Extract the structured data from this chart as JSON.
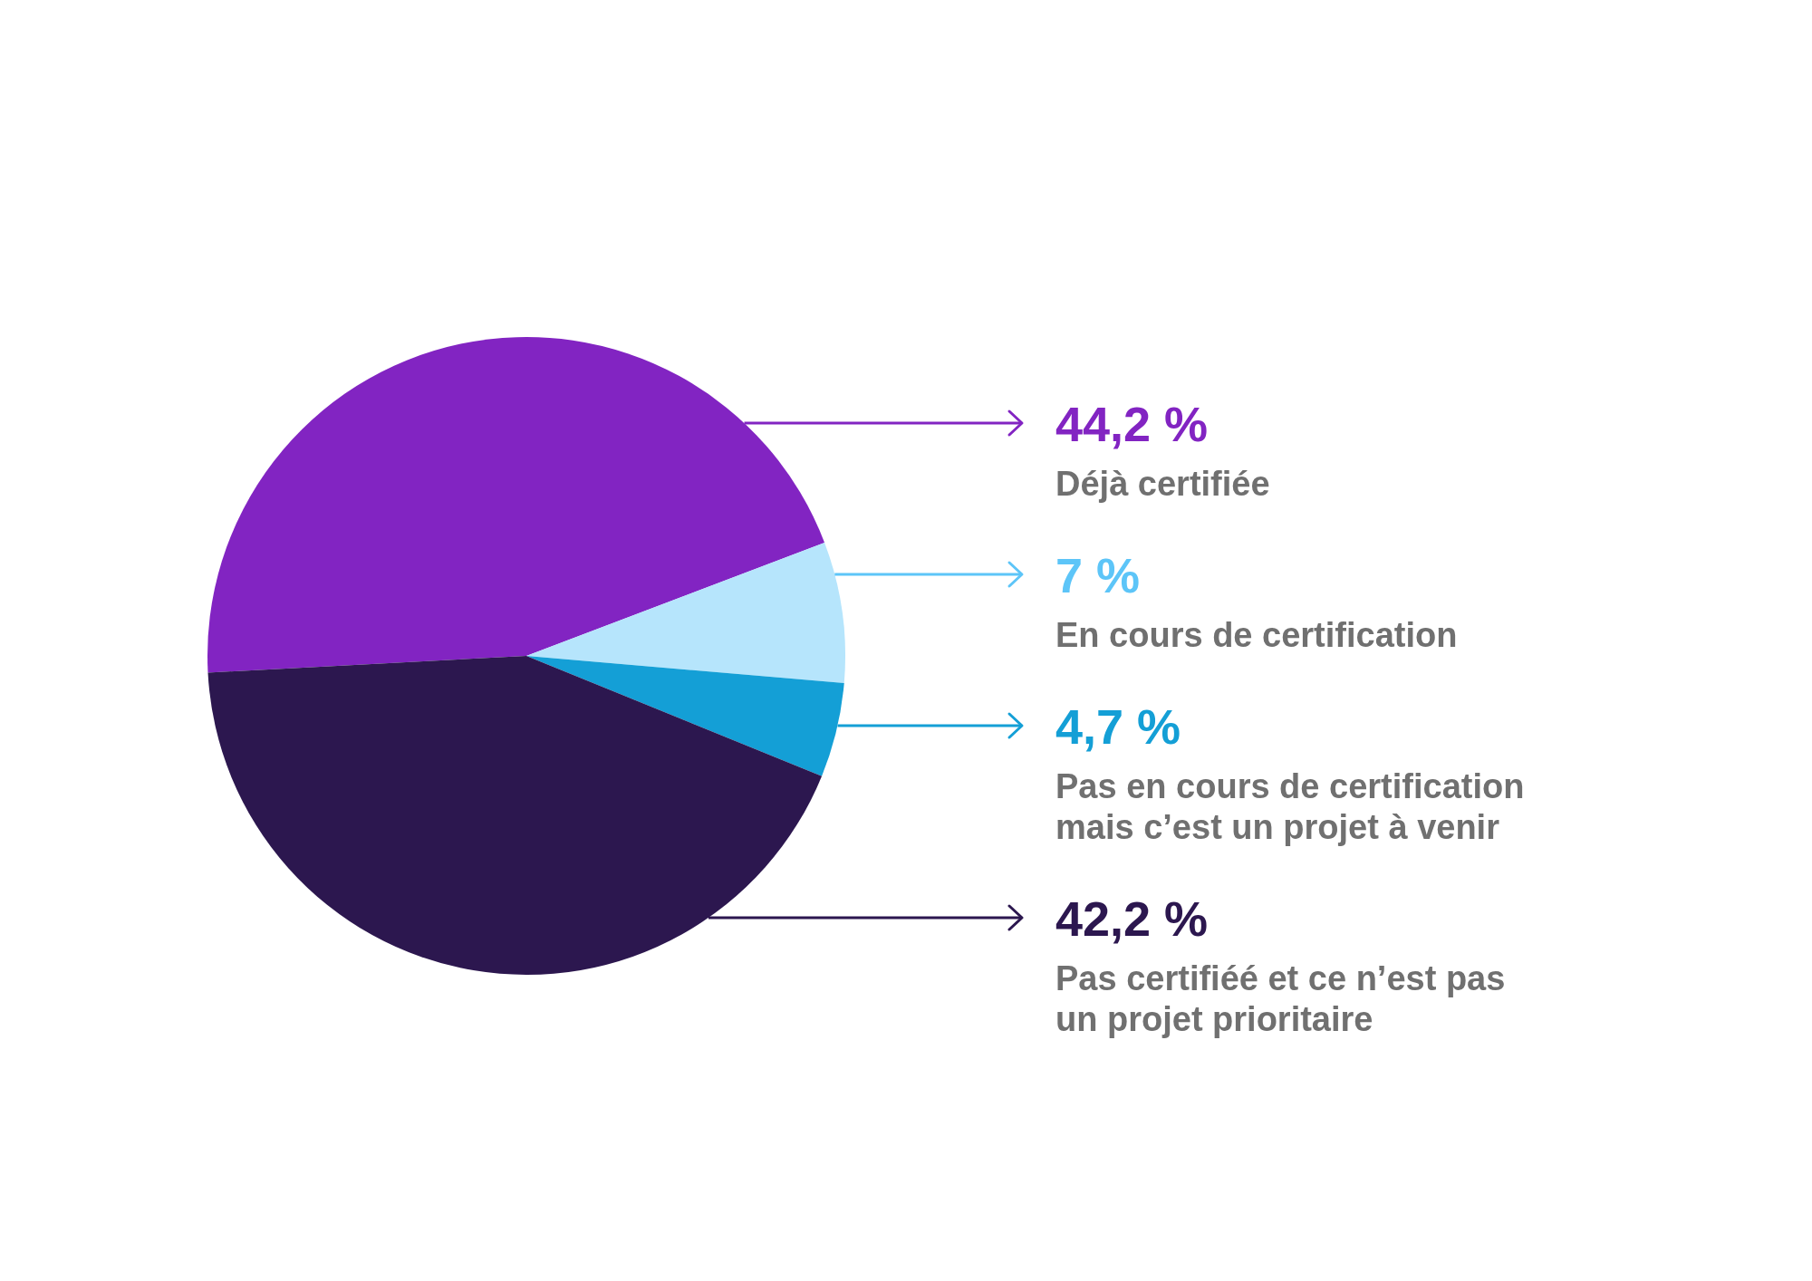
{
  "chart_data": {
    "type": "pie",
    "categories": [
      "Déjà certifiée",
      "En cours de certification",
      "Pas en cours de certification mais c’est un projet à venir",
      "Pas certifiéé et ce n’est pas un projet prioritaire"
    ],
    "values": [
      44.2,
      7,
      4.7,
      42.2
    ],
    "colors": [
      "#8224c2",
      "#b6e5fc",
      "#149fd6",
      "#2c174f"
    ],
    "value_labels": [
      "44,2 %",
      "7 %",
      "4,7 %",
      "42,2 %"
    ]
  }
}
